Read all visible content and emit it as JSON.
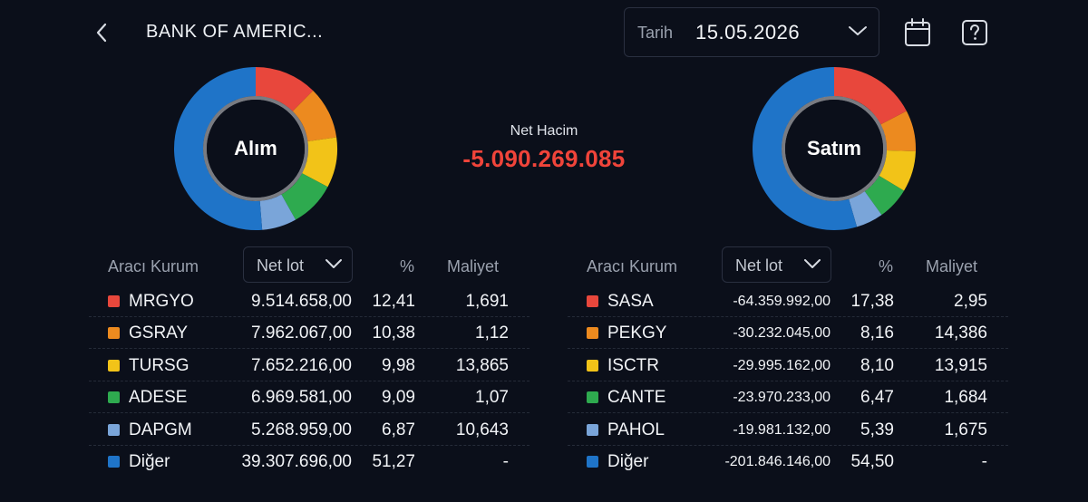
{
  "header": {
    "title": "BANK OF AMERIC...",
    "date_label": "Tarih",
    "date_value": "15.05.2026"
  },
  "summary": {
    "buy_label": "Alım",
    "sell_label": "Satım",
    "net_label": "Net Hacim",
    "net_value": "-5.090.269.085"
  },
  "colors": {
    "c1": "#e8473c",
    "c2": "#ec8a1f",
    "c3": "#f2c318",
    "c4": "#2eaa4f",
    "c5": "#7aa5d9",
    "c6": "#1f74c8",
    "negative": "#f0443a"
  },
  "buy_table": {
    "col_broker": "Aracı Kurum",
    "col_lot": "Net lot",
    "col_pct": "%",
    "col_cost": "Maliyet",
    "rows": [
      {
        "code": "MRGYO",
        "lot": "9.514.658,00",
        "pct": "12,41",
        "cost": "1,691"
      },
      {
        "code": "GSRAY",
        "lot": "7.962.067,00",
        "pct": "10,38",
        "cost": "1,12"
      },
      {
        "code": "TURSG",
        "lot": "7.652.216,00",
        "pct": "9,98",
        "cost": "13,865"
      },
      {
        "code": "ADESE",
        "lot": "6.969.581,00",
        "pct": "9,09",
        "cost": "1,07"
      },
      {
        "code": "DAPGM",
        "lot": "5.268.959,00",
        "pct": "6,87",
        "cost": "10,643"
      },
      {
        "code": "Diğer",
        "lot": "39.307.696,00",
        "pct": "51,27",
        "cost": "-"
      }
    ]
  },
  "sell_table": {
    "col_broker": "Aracı Kurum",
    "col_lot": "Net lot",
    "col_pct": "%",
    "col_cost": "Maliyet",
    "rows": [
      {
        "code": "SASA",
        "lot": "-64.359.992,00",
        "pct": "17,38",
        "cost": "2,95"
      },
      {
        "code": "PEKGY",
        "lot": "-30.232.045,00",
        "pct": "8,16",
        "cost": "14,386"
      },
      {
        "code": "ISCTR",
        "lot": "-29.995.162,00",
        "pct": "8,10",
        "cost": "13,915"
      },
      {
        "code": "CANTE",
        "lot": "-23.970.233,00",
        "pct": "6,47",
        "cost": "1,684"
      },
      {
        "code": "PAHOL",
        "lot": "-19.981.132,00",
        "pct": "5,39",
        "cost": "1,675"
      },
      {
        "code": "Diğer",
        "lot": "-201.846.146,00",
        "pct": "54,50",
        "cost": "-"
      }
    ]
  }
}
